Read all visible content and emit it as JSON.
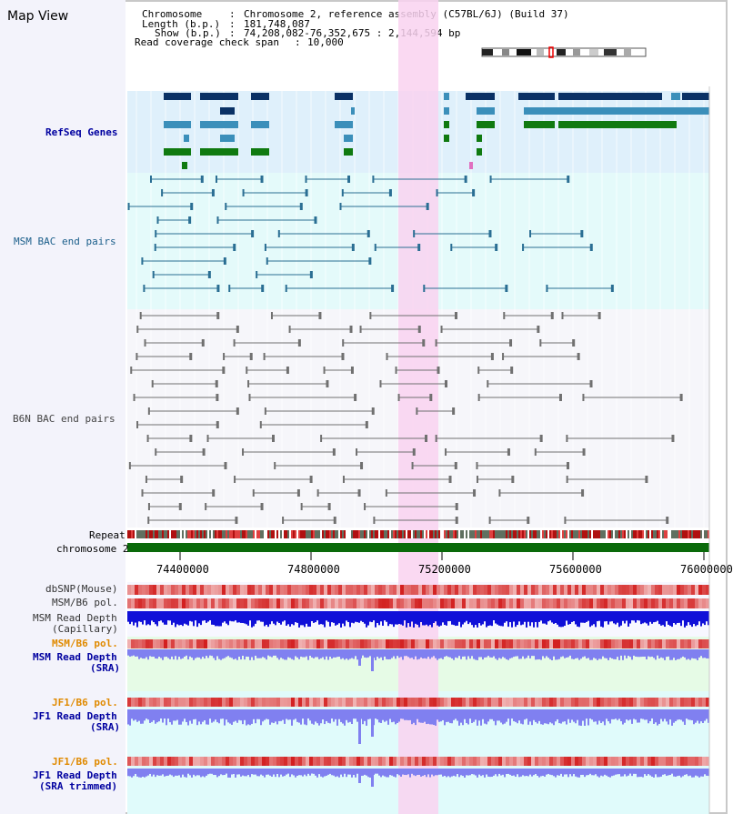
{
  "title": "Map View",
  "info": {
    "chromosome_label": "Chromosome",
    "chromosome_value": "Chromosome 2, reference assembly (C57BL/6J) (Build 37)",
    "length_label": "Length (b.p.)",
    "length_value": "181,748,087",
    "show_label": "Show (b.p.)",
    "show_value": "74,208,082-76,352,675 : 2,144,594 bp",
    "coverage_label": "Read coverage check span",
    "coverage_value": "10,000"
  },
  "tracks": {
    "refseq": "RefSeq Genes",
    "msm_bac": "MSM BAC end pairs",
    "b6n_bac": "B6N BAC end pairs",
    "repeat": "Repeat",
    "chromosome": "chromosome 2",
    "dbsnp": "dbSNP(Mouse)",
    "msm_b6_pol_1": "MSM/B6 pol.",
    "msm_depth_cap_1": "MSM Read Depth",
    "msm_depth_cap_2": "(Capillary)",
    "msm_b6_pol_2": "MSM/B6 pol.",
    "msm_depth_sra_1": "MSM Read Depth",
    "msm_depth_sra_2": "(SRA)",
    "jf1_b6_pol_1": "JF1/B6 pol.",
    "jf1_depth_sra_1": "JF1 Read Depth",
    "jf1_depth_sra_2": "(SRA)",
    "jf1_b6_pol_2": "JF1/B6 pol.",
    "jf1_depth_trim_1": "JF1 Read Depth",
    "jf1_depth_trim_2": "(SRA trimmed)"
  },
  "axis": {
    "ticks": [
      "74400000",
      "74800000",
      "75200000",
      "75600000",
      "76000000"
    ]
  },
  "colors": {
    "refseq_band": "#dff0fb",
    "bac_band": "#e4fafa",
    "highlight": "#f9d2f0",
    "gene_dark": "#0a3165",
    "gene_mid": "#3b8fba",
    "gene_green": "#107a10",
    "msm_line": "#2a6e93",
    "b6n_line": "#707070",
    "chrom_green": "#0a6a0a",
    "depth_cap": "#1010d8",
    "depth_sra": "#8080f0",
    "pol_red": "#f05050"
  }
}
